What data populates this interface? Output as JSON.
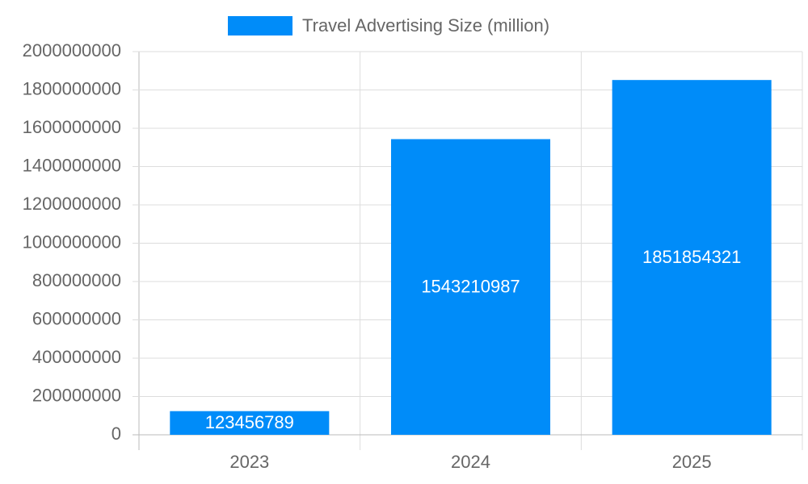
{
  "chart_data": {
    "type": "bar",
    "categories": [
      "2023",
      "2024",
      "2025"
    ],
    "series": [
      {
        "name": "Travel Advertising Size (million)",
        "color": "#008cf9",
        "values": [
          123456789,
          1543210987,
          1851854321
        ]
      }
    ],
    "ylim": [
      0,
      2000000000
    ],
    "yticks": [
      0,
      200000000,
      400000000,
      600000000,
      800000000,
      1000000000,
      1200000000,
      1400000000,
      1600000000,
      1800000000,
      2000000000
    ],
    "grid": true,
    "legend": "top"
  }
}
